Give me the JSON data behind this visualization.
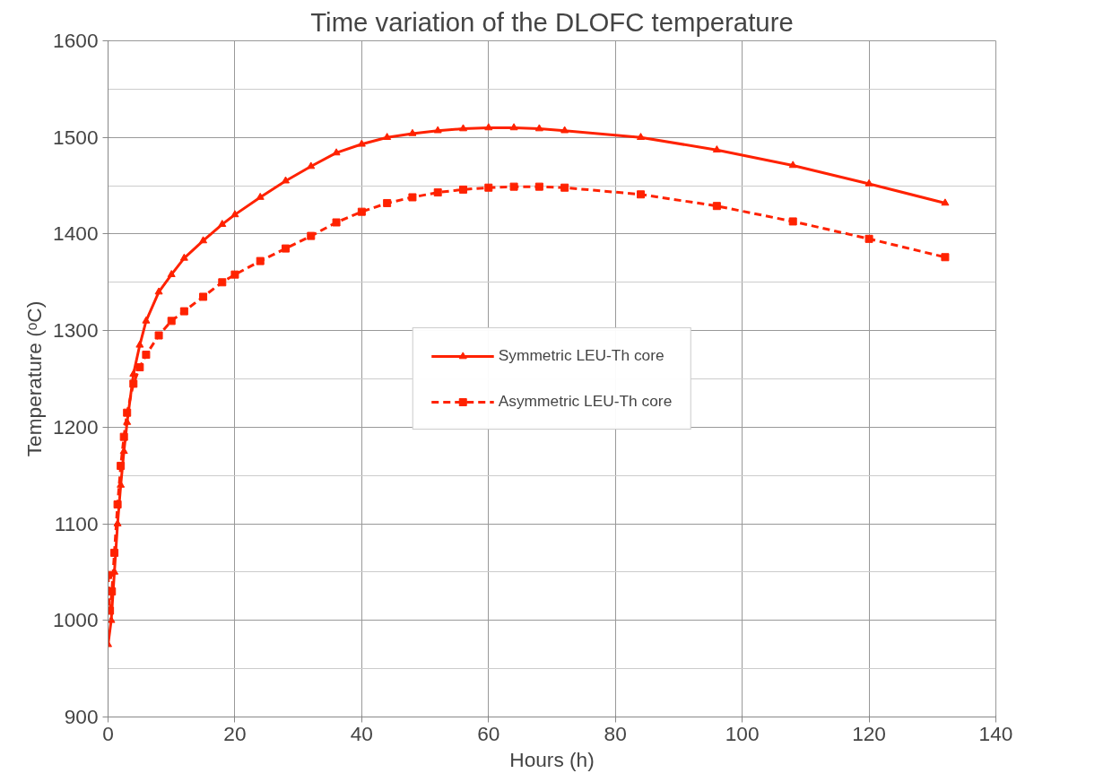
{
  "chart_data": {
    "type": "line",
    "title": "Time variation of the DLOFC temperature",
    "xlabel": "Hours (h)",
    "ylabel": "Temperature (ᵒC)",
    "xlim": [
      0,
      140
    ],
    "xticks": [
      0,
      20,
      40,
      60,
      80,
      100,
      120,
      140
    ],
    "ylim": [
      900,
      1600
    ],
    "yticks": [
      900,
      1000,
      1100,
      1200,
      1300,
      1400,
      1500,
      1600
    ],
    "grid": true,
    "legend": "center",
    "series": [
      {
        "name": "Symmetric LEU-Th core",
        "color": "#ff2200",
        "marker": "triangle",
        "line_style": "solid",
        "x": [
          0,
          0.5,
          1,
          1.5,
          2,
          2.5,
          3,
          4,
          5,
          6,
          8,
          10,
          12,
          15,
          18,
          20,
          24,
          28,
          32,
          36,
          40,
          44,
          48,
          52,
          56,
          60,
          64,
          68,
          72,
          84,
          96,
          108,
          120,
          132
        ],
        "values": [
          975,
          1000,
          1050,
          1100,
          1140,
          1175,
          1205,
          1255,
          1285,
          1310,
          1340,
          1358,
          1375,
          1393,
          1410,
          1420,
          1438,
          1455,
          1470,
          1484,
          1493,
          1500,
          1504,
          1507,
          1509,
          1510,
          1510,
          1509,
          1507,
          1500,
          1487,
          1471,
          1452,
          1432
        ]
      },
      {
        "name": "Asymmetric LEU-Th core",
        "color": "#ff2200",
        "marker": "square",
        "line_style": "dashed",
        "x": [
          0,
          0.3,
          0.6,
          1,
          1.5,
          2,
          2.5,
          3,
          4,
          5,
          6,
          8,
          10,
          12,
          15,
          18,
          20,
          24,
          28,
          32,
          36,
          40,
          44,
          48,
          52,
          56,
          60,
          64,
          68,
          72,
          84,
          96,
          108,
          120,
          132
        ],
        "values": [
          1047,
          1010,
          1030,
          1070,
          1120,
          1160,
          1190,
          1215,
          1245,
          1262,
          1275,
          1295,
          1310,
          1320,
          1335,
          1350,
          1358,
          1372,
          1385,
          1398,
          1412,
          1423,
          1432,
          1438,
          1443,
          1446,
          1448,
          1449,
          1449,
          1448,
          1441,
          1429,
          1413,
          1395,
          1376
        ]
      }
    ]
  }
}
